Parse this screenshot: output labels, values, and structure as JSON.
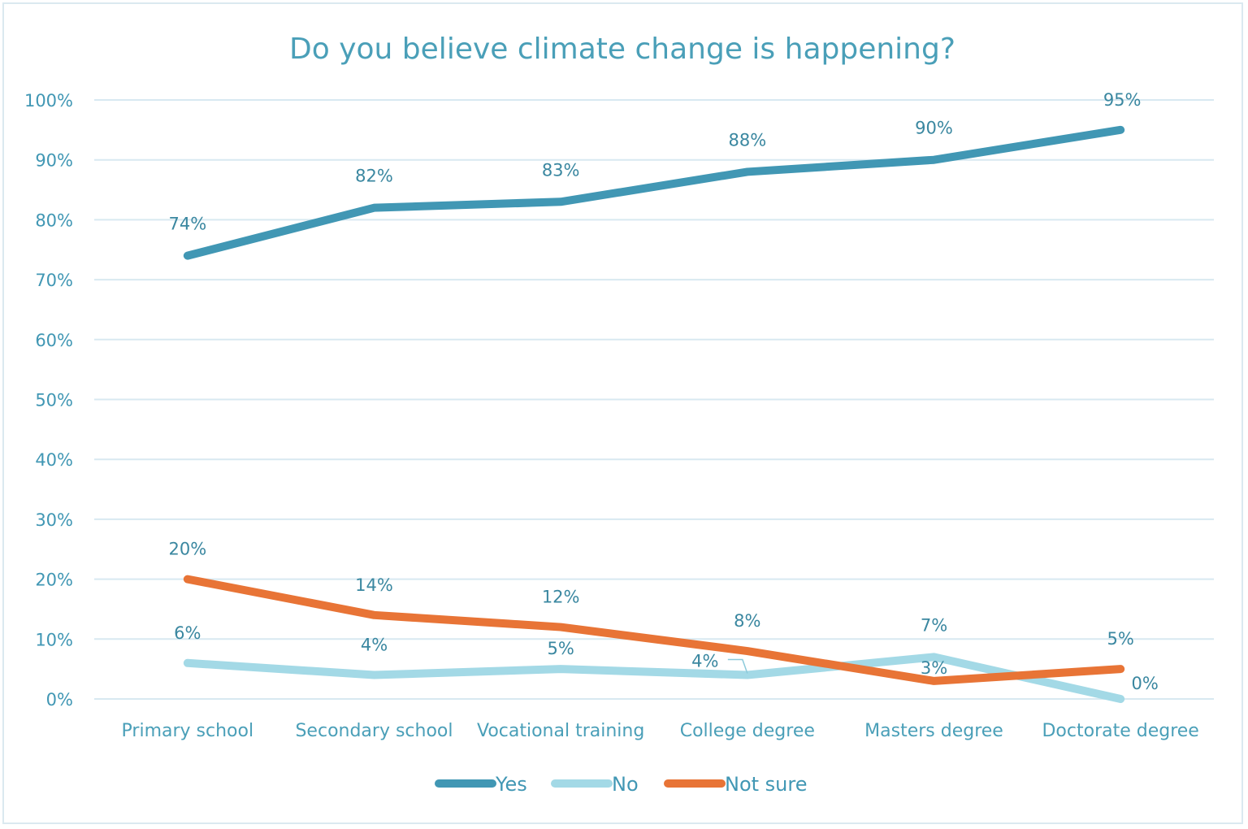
{
  "chart_data": {
    "type": "line",
    "title": "Do you believe climate change is happening?",
    "xlabel": "",
    "ylabel": "",
    "categories": [
      "Primary school",
      "Secondary school",
      "Vocational training",
      "College degree",
      "Masters degree",
      "Doctorate degree"
    ],
    "yticks": [
      "0%",
      "10%",
      "20%",
      "30%",
      "40%",
      "50%",
      "60%",
      "70%",
      "80%",
      "90%",
      "100%"
    ],
    "ylim": [
      0,
      100
    ],
    "grid": true,
    "legend_position": "bottom",
    "series": [
      {
        "name": "Yes",
        "color": "#4197b4",
        "values": [
          74,
          82,
          83,
          88,
          90,
          95
        ],
        "labels": [
          "74%",
          "82%",
          "83%",
          "88%",
          "90%",
          "95%"
        ]
      },
      {
        "name": "No",
        "color": "#a3d9e6",
        "values": [
          6,
          4,
          5,
          4,
          7,
          0
        ],
        "labels": [
          "6%",
          "4%",
          "5%",
          "4%",
          "7%",
          "0%"
        ]
      },
      {
        "name": "Not sure",
        "color": "#e87436",
        "values": [
          20,
          14,
          12,
          8,
          3,
          5
        ],
        "labels": [
          "20%",
          "14%",
          "12%",
          "8%",
          "3%",
          "5%"
        ]
      }
    ]
  }
}
